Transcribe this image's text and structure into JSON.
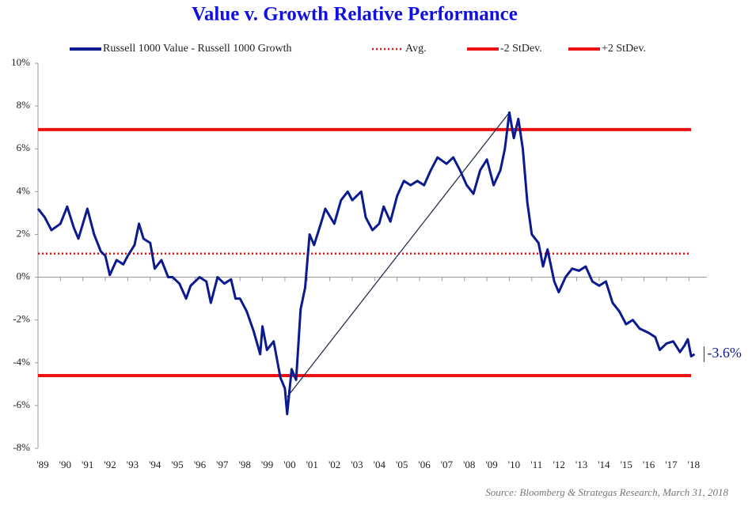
{
  "chart_data": {
    "type": "line",
    "title": "Value v. Growth Relative Performance",
    "source": "Source: Bloomberg & Strategas Research, March 31, 2018",
    "series": [
      {
        "name": "Russell 1000 Value - Russell 1000 Growth",
        "color": "#0b1a8f",
        "x": [
          1989.0,
          1989.3,
          1989.6,
          1990.0,
          1990.3,
          1990.6,
          1990.8,
          1991.2,
          1991.5,
          1991.8,
          1992.0,
          1992.2,
          1992.5,
          1992.8,
          1993.0,
          1993.3,
          1993.5,
          1993.7,
          1994.0,
          1994.2,
          1994.5,
          1994.8,
          1995.0,
          1995.3,
          1995.6,
          1995.8,
          1996.2,
          1996.5,
          1996.7,
          1997.0,
          1997.3,
          1997.6,
          1997.8,
          1998.0,
          1998.3,
          1998.6,
          1998.9,
          1999.0,
          1999.2,
          1999.5,
          1999.8,
          2000.0,
          2000.1,
          2000.3,
          2000.5,
          2000.7,
          2000.9,
          2001.1,
          2001.3,
          2001.6,
          2001.8,
          2002.2,
          2002.5,
          2002.8,
          2003.0,
          2003.4,
          2003.6,
          2003.9,
          2004.2,
          2004.4,
          2004.7,
          2005.0,
          2005.3,
          2005.6,
          2005.9,
          2006.2,
          2006.5,
          2006.8,
          2007.2,
          2007.5,
          2007.8,
          2008.1,
          2008.4,
          2008.7,
          2009.0,
          2009.3,
          2009.6,
          2009.8,
          2010.0,
          2010.2,
          2010.4,
          2010.6,
          2010.8,
          2011.0,
          2011.3,
          2011.5,
          2011.7,
          2012.0,
          2012.2,
          2012.5,
          2012.8,
          2013.1,
          2013.4,
          2013.7,
          2014.0,
          2014.3,
          2014.6,
          2014.9,
          2015.2,
          2015.5,
          2015.8,
          2016.2,
          2016.5,
          2016.7,
          2017.0,
          2017.3,
          2017.6,
          2017.8,
          2017.95,
          2018.1,
          2018.25
        ],
        "values": [
          3.2,
          2.8,
          2.2,
          2.5,
          3.3,
          2.3,
          1.8,
          3.2,
          2.0,
          1.2,
          1.0,
          0.1,
          0.8,
          0.6,
          1.0,
          1.5,
          2.5,
          1.8,
          1.6,
          0.4,
          0.8,
          0.0,
          0.0,
          -0.3,
          -1.0,
          -0.4,
          0.0,
          -0.2,
          -1.2,
          0.0,
          -0.3,
          -0.1,
          -1.0,
          -1.0,
          -1.6,
          -2.5,
          -3.6,
          -2.3,
          -3.4,
          -3.0,
          -4.7,
          -5.2,
          -6.4,
          -4.3,
          -4.8,
          -1.5,
          -0.5,
          2.0,
          1.5,
          2.5,
          3.2,
          2.5,
          3.6,
          4.0,
          3.6,
          4.0,
          2.8,
          2.2,
          2.5,
          3.3,
          2.6,
          3.8,
          4.5,
          4.3,
          4.5,
          4.3,
          5.0,
          5.6,
          5.3,
          5.6,
          5.0,
          4.3,
          3.9,
          5.0,
          5.5,
          4.3,
          5.0,
          6.0,
          7.7,
          6.5,
          7.4,
          6.0,
          3.5,
          2.0,
          1.6,
          0.5,
          1.3,
          -0.2,
          -0.7,
          0.0,
          0.4,
          0.3,
          0.5,
          -0.2,
          -0.4,
          -0.2,
          -1.2,
          -1.6,
          -2.2,
          -2.0,
          -2.4,
          -2.6,
          -2.8,
          -3.4,
          -3.1,
          -3.0,
          -3.5,
          -3.2,
          -2.9,
          -3.7,
          -3.6
        ]
      }
    ],
    "reference_lines": [
      {
        "name": "Avg.",
        "value": 1.1,
        "color": "#ee1111",
        "style": "dotted"
      },
      {
        "name": "-2 StDev.",
        "value": -4.6,
        "color": "#ee1111",
        "style": "solid"
      },
      {
        "name": "+2 StDev.",
        "value": 6.9,
        "color": "#ee1111",
        "style": "solid"
      }
    ],
    "trend_line": {
      "x": [
        2000.1,
        2010.0
      ],
      "values": [
        -5.6,
        7.7
      ],
      "color": "#23324f"
    },
    "end_label": {
      "value": -3.6,
      "label": "-3.6%"
    },
    "xlim": [
      1989,
      2018.8
    ],
    "xticks": [
      {
        "value": 1989,
        "label": "'89"
      },
      {
        "value": 1990,
        "label": "'90"
      },
      {
        "value": 1991,
        "label": "'91"
      },
      {
        "value": 1992,
        "label": "'92"
      },
      {
        "value": 1993,
        "label": "'93"
      },
      {
        "value": 1994,
        "label": "'94"
      },
      {
        "value": 1995,
        "label": "'95"
      },
      {
        "value": 1996,
        "label": "'96"
      },
      {
        "value": 1997,
        "label": "'97"
      },
      {
        "value": 1998,
        "label": "'98"
      },
      {
        "value": 1999,
        "label": "'99"
      },
      {
        "value": 2000,
        "label": "'00"
      },
      {
        "value": 2001,
        "label": "'01"
      },
      {
        "value": 2002,
        "label": "'02"
      },
      {
        "value": 2003,
        "label": "'03"
      },
      {
        "value": 2004,
        "label": "'04"
      },
      {
        "value": 2005,
        "label": "'05"
      },
      {
        "value": 2006,
        "label": "'06"
      },
      {
        "value": 2007,
        "label": "'07"
      },
      {
        "value": 2008,
        "label": "'08"
      },
      {
        "value": 2009,
        "label": "'09"
      },
      {
        "value": 2010,
        "label": "'10"
      },
      {
        "value": 2011,
        "label": "'11"
      },
      {
        "value": 2012,
        "label": "'12"
      },
      {
        "value": 2013,
        "label": "'13"
      },
      {
        "value": 2014,
        "label": "'14"
      },
      {
        "value": 2015,
        "label": "'15"
      },
      {
        "value": 2016,
        "label": "'16"
      },
      {
        "value": 2017,
        "label": "'17"
      },
      {
        "value": 2018,
        "label": "'18"
      }
    ],
    "ylim": [
      -8,
      10
    ],
    "yticks": [
      {
        "value": -8,
        "label": "-8%"
      },
      {
        "value": -6,
        "label": "-6%"
      },
      {
        "value": -4,
        "label": "-4%"
      },
      {
        "value": -2,
        "label": "-2%"
      },
      {
        "value": 0,
        "label": "0%"
      },
      {
        "value": 2,
        "label": "2%"
      },
      {
        "value": 4,
        "label": "4%"
      },
      {
        "value": 6,
        "label": "6%"
      },
      {
        "value": 8,
        "label": "8%"
      },
      {
        "value": 10,
        "label": "10%"
      }
    ],
    "grid": false
  }
}
